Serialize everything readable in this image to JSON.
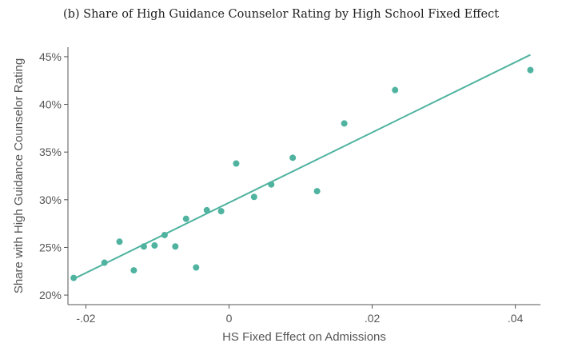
{
  "chart_data": {
    "type": "scatter",
    "title": "(b) Share of High Guidance Counselor Rating by High School Fixed Effect",
    "xlabel": "HS Fixed Effect on Admissions",
    "ylabel": "Share with High Guidance Counselor Rating",
    "xlim": [
      -0.0225,
      0.0435
    ],
    "ylim": [
      0.19,
      0.46
    ],
    "xticks": [
      -0.02,
      0,
      0.02,
      0.04
    ],
    "xtick_labels": [
      "-.02",
      "0",
      ".02",
      ".04"
    ],
    "yticks": [
      0.2,
      0.25,
      0.3,
      0.35,
      0.4,
      0.45
    ],
    "ytick_labels": [
      "20%",
      "25%",
      "30%",
      "35%",
      "40%",
      "45%"
    ],
    "grid": false,
    "color": "#4fb3a0",
    "points": [
      {
        "x": -0.0217,
        "y": 0.218
      },
      {
        "x": -0.0174,
        "y": 0.234
      },
      {
        "x": -0.0153,
        "y": 0.256
      },
      {
        "x": -0.0133,
        "y": 0.226
      },
      {
        "x": -0.0119,
        "y": 0.251
      },
      {
        "x": -0.0104,
        "y": 0.252
      },
      {
        "x": -0.009,
        "y": 0.263
      },
      {
        "x": -0.0075,
        "y": 0.251
      },
      {
        "x": -0.006,
        "y": 0.28
      },
      {
        "x": -0.0046,
        "y": 0.229
      },
      {
        "x": -0.0031,
        "y": 0.289
      },
      {
        "x": -0.0011,
        "y": 0.288
      },
      {
        "x": 0.001,
        "y": 0.338
      },
      {
        "x": 0.0035,
        "y": 0.303
      },
      {
        "x": 0.0059,
        "y": 0.316
      },
      {
        "x": 0.0089,
        "y": 0.344
      },
      {
        "x": 0.0123,
        "y": 0.309
      },
      {
        "x": 0.0161,
        "y": 0.38
      },
      {
        "x": 0.0232,
        "y": 0.415
      },
      {
        "x": 0.0421,
        "y": 0.436
      }
    ],
    "fit_line": {
      "x": [
        -0.0217,
        0.0421
      ],
      "y": [
        0.217,
        0.452
      ]
    }
  }
}
